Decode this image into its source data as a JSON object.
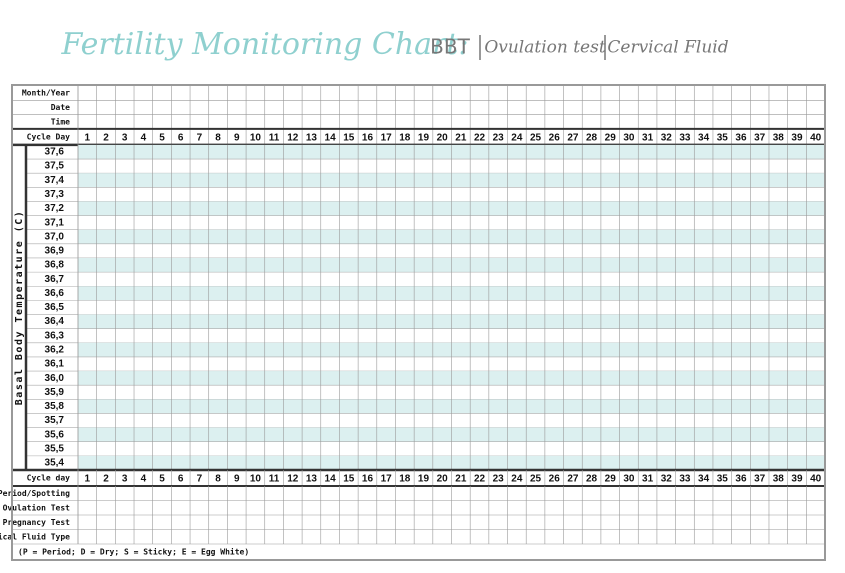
{
  "header": {
    "title": "Fertility Monitoring Chart:",
    "subtitle_parts": [
      "BBT",
      "Ovulation test",
      "Cervical Fluid"
    ]
  },
  "top_rows": [
    "Month/Year",
    "Date",
    "Time"
  ],
  "cycle_day_header": "Cycle Day",
  "days": [
    1,
    2,
    3,
    4,
    5,
    6,
    7,
    8,
    9,
    10,
    11,
    12,
    13,
    14,
    15,
    16,
    17,
    18,
    19,
    20,
    21,
    22,
    23,
    24,
    25,
    26,
    27,
    28,
    29,
    30,
    31,
    32,
    33,
    34,
    35,
    36,
    37,
    38,
    39,
    40
  ],
  "temperature_axis_label": "Basal Body Temperature (C)",
  "temperatures": [
    "37,6",
    "37,5",
    "37,4",
    "37,3",
    "37,2",
    "37,1",
    "37,0",
    "36,9",
    "36,8",
    "36,7",
    "36,6",
    "36,5",
    "36,4",
    "36,3",
    "36,2",
    "36,1",
    "36,0",
    "35,9",
    "35,8",
    "35,7",
    "35,6",
    "35,5",
    "35,4"
  ],
  "cycle_day_footer": "Cycle day",
  "bottom_rows": [
    "Period/Spotting",
    "Ovulation Test",
    "Pregnancy Test",
    "Cervical Fluid Type"
  ],
  "legend": "(P = Period; D = Dry; S = Sticky; E = Egg White)"
}
